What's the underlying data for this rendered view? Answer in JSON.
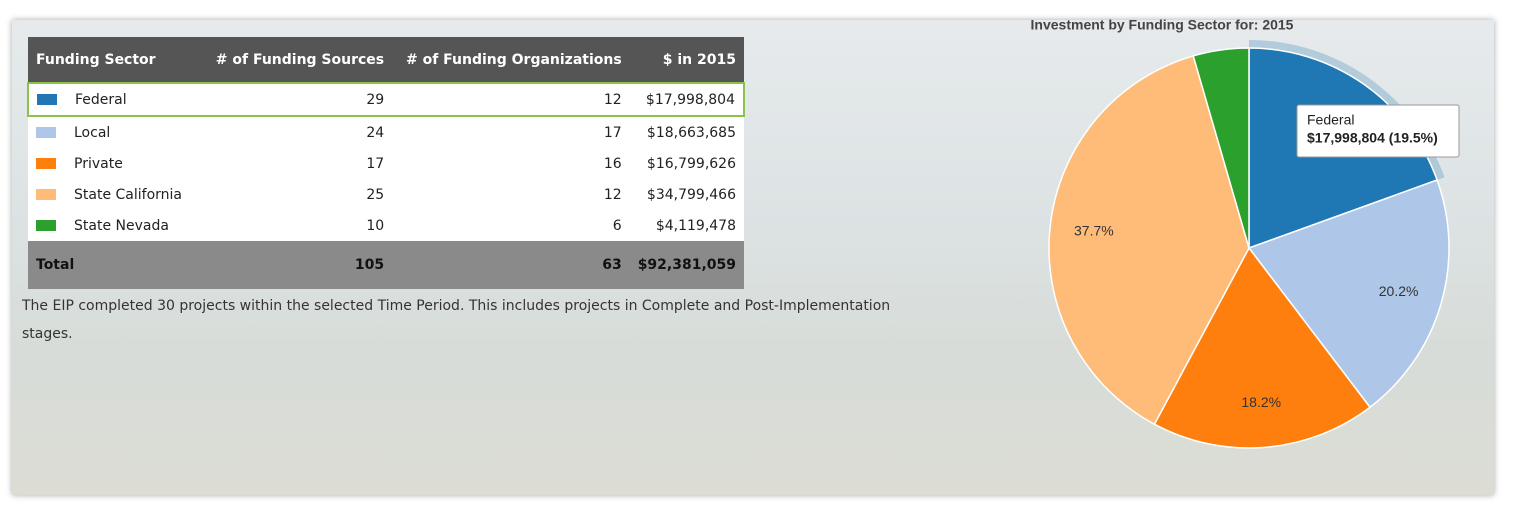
{
  "table": {
    "headers": [
      "Funding Sector",
      "# of Funding Sources",
      "# of Funding Organizations",
      "$ in 2015"
    ],
    "rows": [
      [
        "Federal",
        29,
        12,
        "$17,998,804"
      ],
      [
        "Local",
        24,
        17,
        "$18,663,685"
      ],
      [
        "Private",
        17,
        16,
        "$16,799,626"
      ],
      [
        "State California",
        25,
        12,
        "$34,799,466"
      ],
      [
        "State Nevada",
        10,
        6,
        "$4,119,478"
      ]
    ],
    "total": [
      "Total",
      105,
      63,
      "$92,381,059"
    ]
  },
  "note": "The EIP completed 30 projects within the selected Time Period. This includes projects in Complete and Post-Implementation stages.",
  "chart_data": {
    "type": "pie",
    "title": "Investment by Funding Sector for: 2015",
    "categories": [
      "Federal",
      "Local",
      "Private",
      "State California",
      "State Nevada"
    ],
    "values": [
      19.5,
      20.2,
      18.2,
      37.7,
      4.5
    ],
    "value_labels": [
      null,
      "20.2%",
      "18.2%",
      "37.7%",
      null
    ],
    "colors": [
      "#1f77b4",
      "#aec7e8",
      "#ff7f0e",
      "#ffbb78",
      "#2ca02c"
    ],
    "tooltip": "$17,998,804 (19.5%)"
  }
}
